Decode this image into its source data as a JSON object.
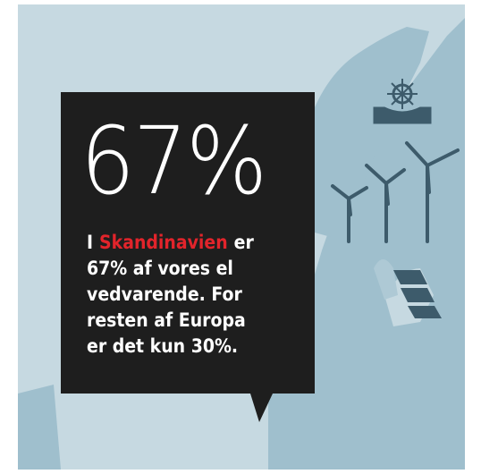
{
  "headline": "67%",
  "body": {
    "lines": [
      [
        "I",
        "Skandinavien",
        "er"
      ],
      [
        "67% af vores el"
      ],
      [
        "vedvarende. For"
      ],
      [
        "resten af Europa"
      ],
      [
        "er det kun 30%."
      ]
    ]
  }
}
